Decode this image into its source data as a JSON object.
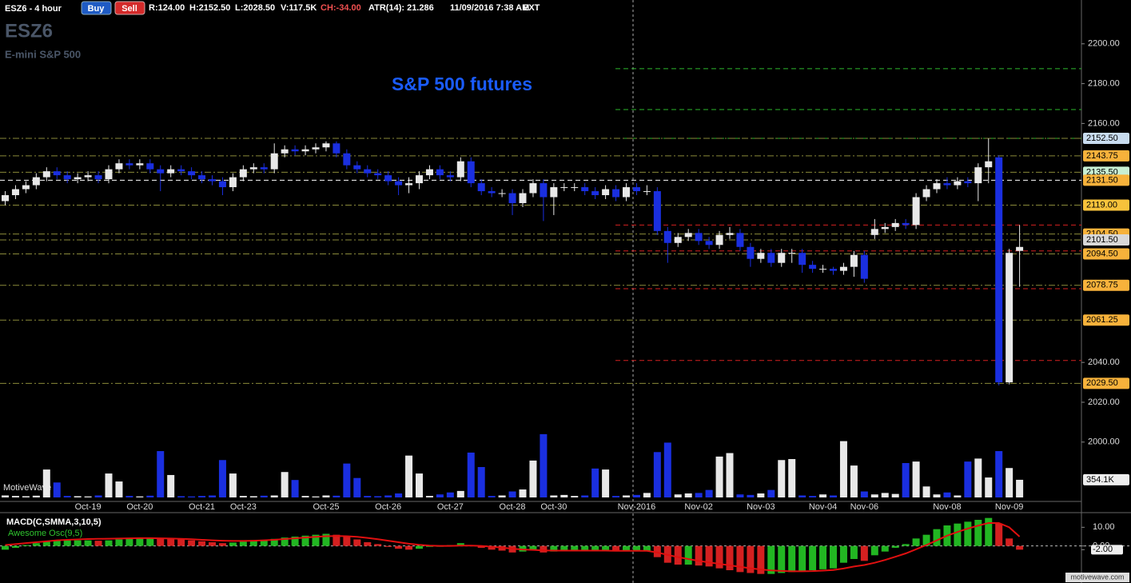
{
  "header": {
    "symbol_period": "ESZ6 - 4 hour",
    "buy": "Buy",
    "sell": "Sell",
    "range": "R:124.00",
    "high": "H:2152.50",
    "low": "L:2028.50",
    "volume": "V:117.5K",
    "change": "CH:-34.00",
    "atr": "ATR(14): 21.286",
    "datetime": "11/09/2016 7:38 AM",
    "session": "EXT",
    "symbol": "ESZ6",
    "instrument": "E-mini S&P 500",
    "watermark": "MotiveWave",
    "site": "motivewave.com"
  },
  "chart_data": [
    {
      "type": "candlestick",
      "title": "S&P 500 futures",
      "categories": [
        null,
        null,
        null,
        null,
        null,
        null,
        null,
        null,
        "Oct-19",
        null,
        null,
        null,
        null,
        "Oct-20",
        null,
        null,
        null,
        null,
        null,
        "Oct-21",
        null,
        null,
        null,
        "Oct-23",
        null,
        null,
        null,
        null,
        null,
        null,
        null,
        "Oct-25",
        null,
        null,
        null,
        null,
        null,
        "Oct-26",
        null,
        null,
        null,
        null,
        null,
        "Oct-27",
        null,
        null,
        null,
        null,
        null,
        "Oct-28",
        null,
        null,
        null,
        "Oct-30",
        null,
        null,
        null,
        null,
        null,
        null,
        null,
        "Nov-2016",
        null,
        null,
        null,
        null,
        null,
        "Nov-02",
        null,
        null,
        null,
        null,
        null,
        "Nov-03",
        null,
        null,
        null,
        null,
        null,
        "Nov-04",
        null,
        null,
        null,
        "Nov-06",
        null,
        null,
        null,
        null,
        null,
        null,
        null,
        "Nov-08",
        null,
        null,
        null,
        null,
        null,
        "Nov-09",
        null
      ],
      "open": [
        2121,
        2124,
        2127,
        2129,
        2133,
        2136,
        2134,
        2132,
        2133,
        2134,
        2132,
        2137,
        2140,
        2139,
        2140,
        2137,
        2135,
        2137,
        2136,
        2134,
        2132,
        2131,
        2128,
        2133,
        2137,
        2138,
        2137,
        2145,
        2147,
        2146,
        2147,
        2148,
        2150,
        2145,
        2139,
        2137,
        2135,
        2134,
        2131,
        2129,
        2130,
        2134,
        2137,
        2134,
        2133,
        2141,
        2130,
        2126,
        2125,
        2125,
        2120,
        2125,
        2130,
        2123,
        2128,
        2128,
        2128,
        2126,
        2124,
        2127,
        2123,
        2128,
        2126,
        2126,
        2106,
        2100,
        2103,
        2105,
        2101,
        2099,
        2104,
        2105,
        2098,
        2092,
        2095,
        2090,
        2095,
        2095,
        2089,
        2087,
        2087,
        2086,
        2088,
        2094,
        2104,
        2107,
        2108,
        2110,
        2109,
        2123,
        2127,
        2130,
        2129,
        2131,
        2130,
        2138,
        2143,
        2030,
        2096
      ],
      "high": [
        2126,
        2129,
        2131,
        2135,
        2138,
        2138,
        2136,
        2135,
        2136,
        2136,
        2139,
        2142,
        2142,
        2142,
        2142,
        2139,
        2139,
        2139,
        2138,
        2136,
        2134,
        2133,
        2135,
        2139,
        2140,
        2140,
        2150,
        2149,
        2149,
        2149,
        2150,
        2151,
        2151,
        2147,
        2141,
        2139,
        2137,
        2136,
        2133,
        2133,
        2136,
        2139,
        2139,
        2136,
        2143,
        2143,
        2132,
        2128,
        2127,
        2127,
        2127,
        2132,
        2132,
        2130,
        2130,
        2130,
        2130,
        2128,
        2129,
        2129,
        2130,
        2130,
        2129,
        2128,
        2108,
        2105,
        2107,
        2107,
        2103,
        2106,
        2108,
        2107,
        2100,
        2097,
        2097,
        2097,
        2097,
        2097,
        2091,
        2089,
        2088,
        2090,
        2096,
        2096,
        2112,
        2110,
        2112,
        2112,
        2125,
        2129,
        2132,
        2133,
        2133,
        2133,
        2140,
        2152.5,
        2144,
        2097,
        2109
      ],
      "low": [
        2119,
        2122,
        2125,
        2127,
        2131,
        2132,
        2130,
        2130,
        2131,
        2130,
        2130,
        2135,
        2137,
        2137,
        2135,
        2126,
        2133,
        2134,
        2132,
        2130,
        2129,
        2124,
        2126,
        2131,
        2135,
        2135,
        2135,
        2143,
        2144,
        2144,
        2145,
        2146,
        2143,
        2137,
        2135,
        2133,
        2132,
        2129,
        2124,
        2125,
        2127,
        2132,
        2132,
        2131,
        2131,
        2128,
        2124,
        2123,
        2123,
        2114,
        2118,
        2123,
        2111,
        2114,
        2126,
        2126,
        2124,
        2122,
        2122,
        2121,
        2121,
        2124,
        2124,
        2104,
        2090,
        2098,
        2101,
        2099,
        2097,
        2097,
        2102,
        2096,
        2088,
        2090,
        2088,
        2088,
        2090,
        2085,
        2085,
        2085,
        2084,
        2084,
        2083,
        2080,
        2102,
        2105,
        2106,
        2107,
        2107,
        2121,
        2125,
        2127,
        2127,
        2128,
        2121,
        2130,
        2028.5,
        2029,
        2078
      ],
      "close": [
        2124,
        2127,
        2129,
        2133,
        2136,
        2134,
        2132,
        2133,
        2134,
        2132,
        2137,
        2140,
        2139,
        2140,
        2137,
        2135,
        2137,
        2136,
        2134,
        2132,
        2131,
        2128,
        2133,
        2137,
        2138,
        2137,
        2145,
        2147,
        2146,
        2147,
        2148,
        2150,
        2145,
        2139,
        2137,
        2135,
        2134,
        2131,
        2129,
        2130,
        2134,
        2137,
        2134,
        2133,
        2141,
        2130,
        2126,
        2125,
        2125,
        2120,
        2125,
        2130,
        2123,
        2128,
        2128,
        2128,
        2126,
        2124,
        2127,
        2123,
        2128,
        2126,
        2126,
        2106,
        2100,
        2103,
        2105,
        2101,
        2099,
        2104,
        2105,
        2098,
        2092,
        2095,
        2090,
        2095,
        2095,
        2089,
        2087,
        2087,
        2086,
        2088,
        2094,
        2082,
        2107,
        2108,
        2110,
        2109,
        2123,
        2127,
        2130,
        2129,
        2131,
        2130,
        2138,
        2141,
        2030,
        2095,
        2098
      ],
      "up_color": "#e8e8e8",
      "down_color": "#1a2fe0",
      "ylim": [
        1971,
        2222
      ],
      "yticks": [
        {
          "value": 2200,
          "label": "2200.00"
        },
        {
          "value": 2180,
          "label": "2180.00"
        },
        {
          "value": 2160,
          "label": "2160.00"
        },
        {
          "value": 2040,
          "label": "2040.00"
        },
        {
          "value": 2020,
          "label": "2020.00"
        },
        {
          "value": 2000,
          "label": "2000.00"
        }
      ],
      "levels": [
        {
          "value": 2152.5,
          "label": "2152.50",
          "color": "#c8dcf0"
        },
        {
          "value": 2143.75,
          "label": "2143.75",
          "color": "#f7b23b"
        },
        {
          "value": 2135.5,
          "label": "2135.50",
          "color": "#c8f0d4"
        },
        {
          "value": 2131.5,
          "label": "2131.50",
          "color": "#f7b23b"
        },
        {
          "value": 2119,
          "label": "2119.00",
          "color": "#f7c23b"
        },
        {
          "value": 2104.5,
          "label": "2104.50",
          "color": "#f7b23b"
        },
        {
          "value": 2101.5,
          "label": "2101.50",
          "color": "#d8d8d8"
        },
        {
          "value": 2094.5,
          "label": "2094.50",
          "color": "#f7b23b"
        },
        {
          "value": 2078.75,
          "label": "2078.75",
          "color": "#f7b23b"
        },
        {
          "value": 2061.25,
          "label": "2061.25",
          "color": "#f7b23b"
        },
        {
          "value": 2029.5,
          "label": "2029.50",
          "color": "#f7b23b"
        }
      ],
      "resistance_lines": [
        2187.5,
        2167,
        2152.5
      ],
      "resistance_color": "#2db82d",
      "support_lines": [
        2109,
        2096,
        2077,
        2041
      ],
      "support_color": "#d42020"
    },
    {
      "type": "bar",
      "values": [
        40,
        30,
        25,
        35,
        560,
        300,
        30,
        25,
        20,
        40,
        480,
        320,
        30,
        20,
        35,
        930,
        450,
        25,
        20,
        30,
        40,
        750,
        480,
        30,
        25,
        35,
        40,
        510,
        350,
        30,
        20,
        40,
        35,
        680,
        390,
        30,
        25,
        40,
        80,
        840,
        480,
        30,
        60,
        100,
        130,
        900,
        610,
        30,
        40,
        120,
        160,
        740,
        1270,
        40,
        50,
        30,
        40,
        580,
        560,
        30,
        40,
        50,
        90,
        910,
        1100,
        60,
        80,
        90,
        150,
        820,
        890,
        60,
        50,
        80,
        150,
        750,
        770,
        40,
        30,
        60,
        40,
        1130,
        640,
        120,
        60,
        90,
        70,
        690,
        720,
        220,
        60,
        100,
        40,
        720,
        780,
        400,
        930,
        590,
        354.1
      ],
      "ylim": [
        0,
        1300
      ],
      "yticks": [
        {
          "value": 354.1,
          "label": "354.1K"
        }
      ]
    },
    {
      "type": "histogram-line",
      "title": "MACD(C,SMMA,3,10,5)",
      "subtitle": "Awesome Osc(9,5)",
      "values": [
        -2,
        -1,
        0.5,
        1.5,
        2.5,
        3,
        3,
        3,
        3,
        2.8,
        3,
        3.5,
        4,
        4.5,
        4.5,
        4,
        3.8,
        3.5,
        3,
        2.5,
        2,
        1.5,
        1.8,
        2.3,
        2.8,
        3,
        3.8,
        4.5,
        5,
        5.5,
        6,
        6.5,
        6,
        5,
        3.5,
        2,
        1,
        -0.5,
        -1.5,
        -2,
        -1.5,
        -0.5,
        0,
        0.5,
        1.5,
        0.5,
        -1,
        -2,
        -2.5,
        -3.5,
        -3,
        -2.5,
        -3.5,
        -3,
        -2.5,
        -2.5,
        -2.5,
        -2.5,
        -2.5,
        -2.8,
        -2.5,
        -2.5,
        -2.5,
        -6,
        -9,
        -10,
        -10,
        -10.5,
        -11,
        -12,
        -13,
        -14,
        -14.5,
        -15,
        -15,
        -14.5,
        -14,
        -13.5,
        -13,
        -12.5,
        -12,
        -9,
        -7,
        -8,
        -5,
        -3,
        -1,
        1,
        4,
        6,
        9,
        11,
        12,
        13,
        14,
        15,
        12,
        4,
        -2
      ],
      "signal": [
        0.5,
        1,
        1.5,
        2,
        2.5,
        3,
        3.3,
        3.5,
        3.7,
        3.8,
        3.9,
        4,
        4.1,
        4.2,
        4.2,
        4.1,
        4,
        3.8,
        3.6,
        3.3,
        3,
        2.8,
        2.7,
        2.7,
        2.8,
        3,
        3.3,
        3.7,
        4.1,
        4.5,
        4.9,
        5.2,
        5.3,
        5.2,
        4.9,
        4.3,
        3.6,
        2.8,
        2,
        1.2,
        0.6,
        0.2,
        0,
        0,
        0.2,
        0.2,
        0,
        -0.4,
        -0.9,
        -1.5,
        -1.9,
        -2.1,
        -2.4,
        -2.5,
        -2.5,
        -2.5,
        -2.5,
        -2.5,
        -2.5,
        -2.6,
        -2.6,
        -2.6,
        -2.6,
        -3.5,
        -4.8,
        -6,
        -7,
        -8,
        -8.8,
        -9.6,
        -10.4,
        -11.2,
        -12,
        -12.6,
        -13.1,
        -13.4,
        -13.6,
        -13.6,
        -13.5,
        -13.2,
        -12.9,
        -12.1,
        -11,
        -10.2,
        -9,
        -7.5,
        -5.8,
        -4,
        -1.8,
        0.5,
        3,
        5.5,
        7.5,
        9.3,
        10.9,
        12.3,
        12.3,
        10,
        5
      ],
      "up_color": "#22b622",
      "down_color": "#d42020",
      "signal_color": "#e01010",
      "ylim": [
        -19,
        17
      ],
      "yticks": [
        {
          "value": 10,
          "label": "10.00"
        },
        {
          "value": 0,
          "label": "0.00"
        },
        {
          "value": -2,
          "label": "-2.00"
        }
      ]
    }
  ]
}
